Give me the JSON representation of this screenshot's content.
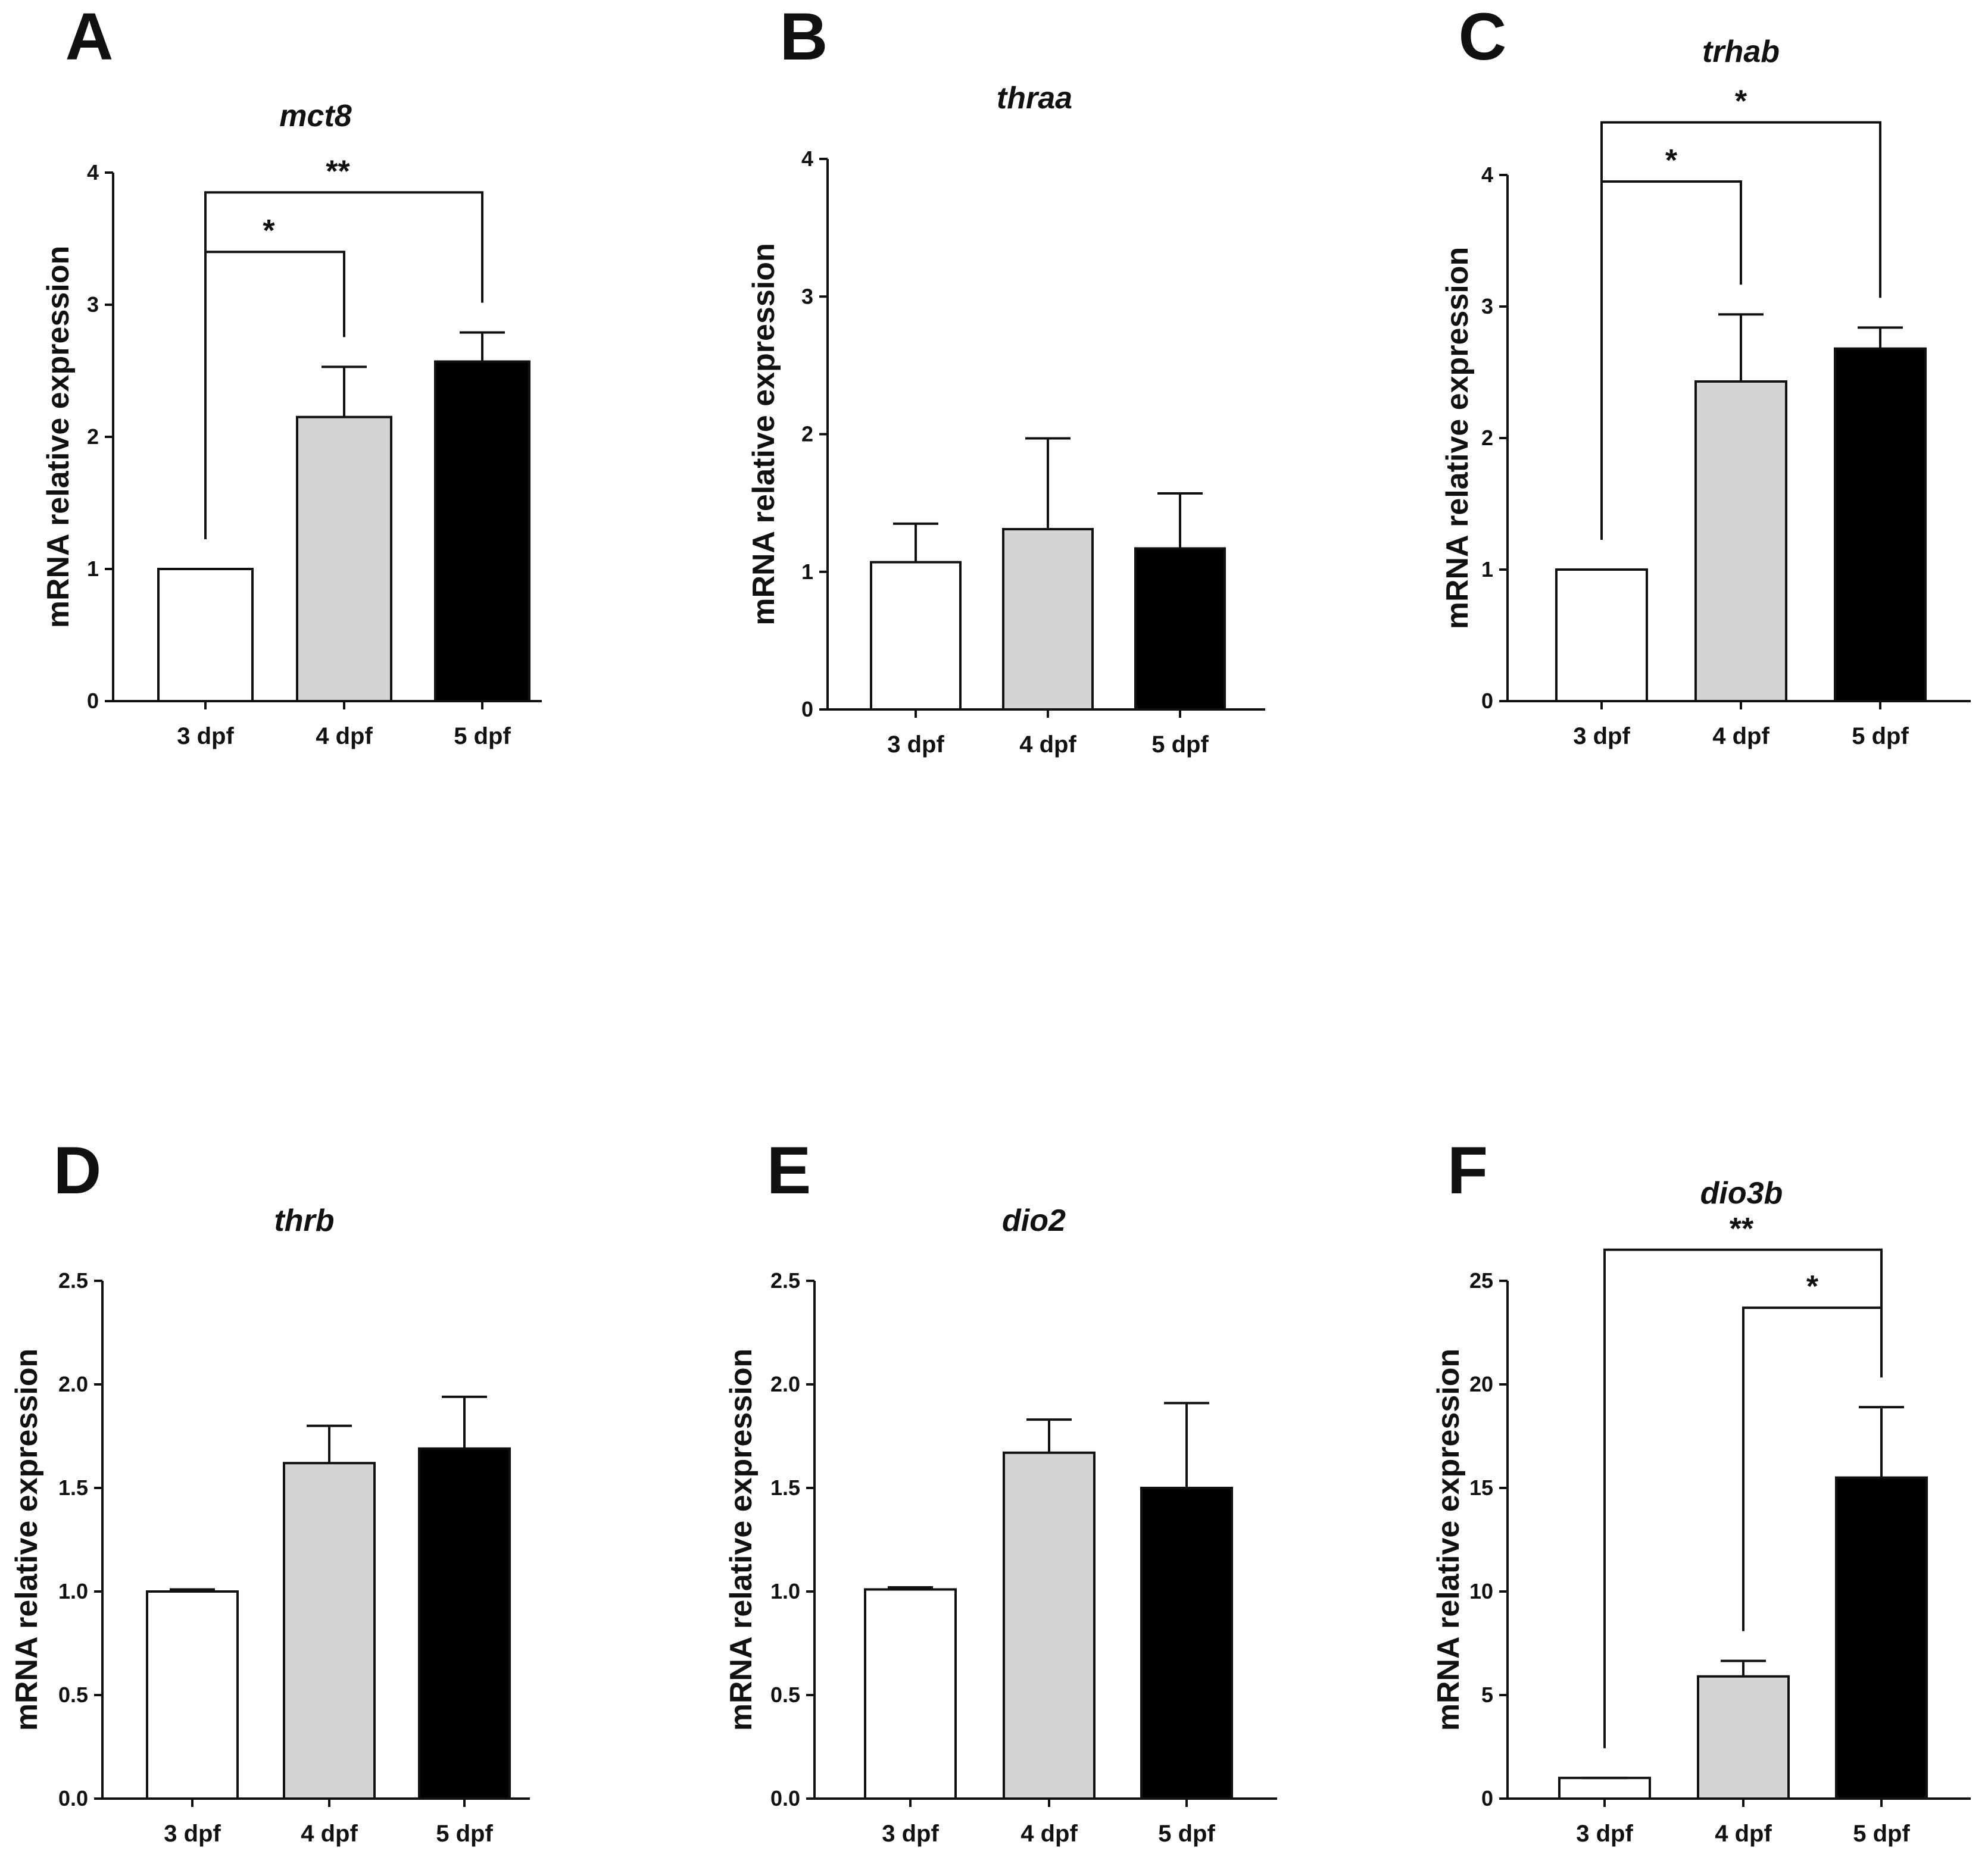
{
  "figure": {
    "panels": [
      "A",
      "B",
      "C",
      "D",
      "E",
      "F"
    ]
  },
  "colors": {
    "3 dpf": "#ffffff",
    "4 dpf": "#d4d4d4",
    "5 dpf": "#000000",
    "stroke": "#111111"
  },
  "chart_data": [
    {
      "panel": "A",
      "type": "bar",
      "title": "mct8",
      "ylabel": "mRNA relative expression",
      "xlabel": "",
      "categories": [
        "3 dpf",
        "4 dpf",
        "5 dpf"
      ],
      "values": [
        1.0,
        2.15,
        2.57
      ],
      "errors": [
        0.0,
        0.38,
        0.22
      ],
      "ylim": [
        0,
        4
      ],
      "yticks": [
        "0",
        "1",
        "2",
        "3",
        "4"
      ],
      "significance": [
        {
          "from": 0,
          "to": 1,
          "label": "*",
          "level": 3.4
        },
        {
          "from": 0,
          "to": 2,
          "label": "**",
          "level": 3.85
        }
      ]
    },
    {
      "panel": "B",
      "type": "bar",
      "title": "thraa",
      "ylabel": "mRNA relative expression",
      "xlabel": "",
      "categories": [
        "3 dpf",
        "4 dpf",
        "5 dpf"
      ],
      "values": [
        1.07,
        1.31,
        1.17
      ],
      "errors": [
        0.28,
        0.66,
        0.4
      ],
      "ylim": [
        0,
        4
      ],
      "yticks": [
        "0",
        "1",
        "2",
        "3",
        "4"
      ],
      "significance": []
    },
    {
      "panel": "C",
      "type": "bar",
      "title": "trhab",
      "ylabel": "mRNA relative expression",
      "xlabel": "",
      "categories": [
        "3 dpf",
        "4 dpf",
        "5 dpf"
      ],
      "values": [
        1.0,
        2.43,
        2.68
      ],
      "errors": [
        0.0,
        0.51,
        0.16
      ],
      "ylim": [
        0,
        4
      ],
      "yticks": [
        "0",
        "1",
        "2",
        "3",
        "4"
      ],
      "significance": [
        {
          "from": 0,
          "to": 1,
          "label": "*",
          "level": 3.95
        },
        {
          "from": 0,
          "to": 2,
          "label": "*",
          "level": 4.4
        }
      ]
    },
    {
      "panel": "D",
      "type": "bar",
      "title": "thrb",
      "ylabel": "mRNA relative expression",
      "xlabel": "",
      "categories": [
        "3 dpf",
        "4 dpf",
        "5 dpf"
      ],
      "values": [
        1.0,
        1.62,
        1.69
      ],
      "errors": [
        0.01,
        0.18,
        0.25
      ],
      "ylim": [
        0,
        2.5
      ],
      "yticks": [
        "0.0",
        "0.5",
        "1.0",
        "1.5",
        "2.0",
        "2.5"
      ],
      "significance": []
    },
    {
      "panel": "E",
      "type": "bar",
      "title": "dio2",
      "ylabel": "mRNA relative expression",
      "xlabel": "",
      "categories": [
        "3 dpf",
        "4 dpf",
        "5 dpf"
      ],
      "values": [
        1.01,
        1.67,
        1.5
      ],
      "errors": [
        0.01,
        0.16,
        0.41
      ],
      "ylim": [
        0,
        2.5
      ],
      "yticks": [
        "0.0",
        "0.5",
        "1.0",
        "1.5",
        "2.0",
        "2.5"
      ],
      "significance": []
    },
    {
      "panel": "F",
      "type": "bar",
      "title": "dio3b",
      "ylabel": "mRNA relative expression",
      "xlabel": "",
      "categories": [
        "3 dpf",
        "4 dpf",
        "5 dpf"
      ],
      "values": [
        1.0,
        5.9,
        15.5
      ],
      "errors": [
        0.0,
        0.75,
        3.4
      ],
      "ylim": [
        0,
        25
      ],
      "yticks": [
        "0",
        "5",
        "10",
        "15",
        "20",
        "25"
      ],
      "significance": [
        {
          "from": 1,
          "to": 2,
          "label": "*",
          "level": 23.7
        },
        {
          "from": 0,
          "to": 2,
          "label": "**",
          "level": 26.5
        }
      ]
    }
  ]
}
